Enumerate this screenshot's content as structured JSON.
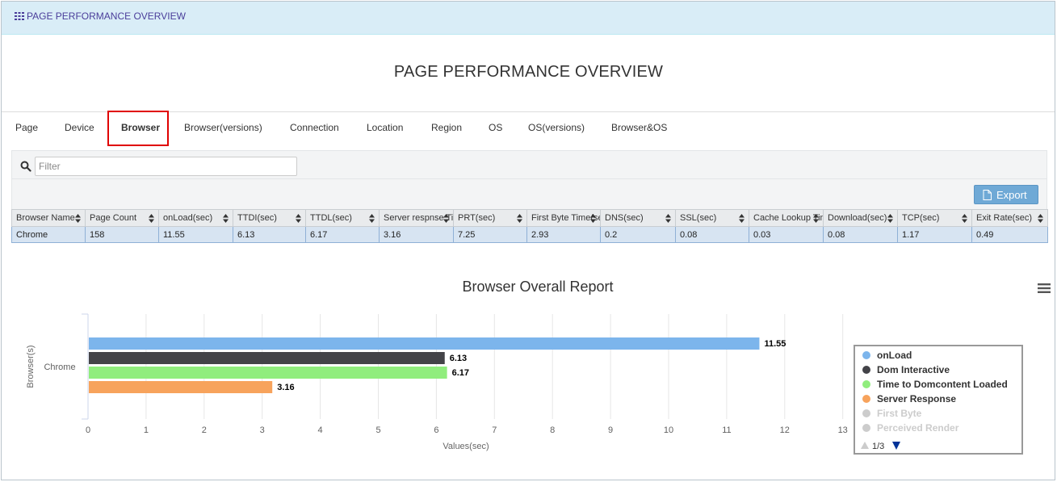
{
  "header": {
    "title": "PAGE PERFORMANCE OVERVIEW",
    "icon": "grid-icon"
  },
  "page_title": "PAGE PERFORMANCE OVERVIEW",
  "tabs": [
    {
      "label": "Page"
    },
    {
      "label": "Device"
    },
    {
      "label": "Browser",
      "active": true
    },
    {
      "label": "Browser(versions)"
    },
    {
      "label": "Connection"
    },
    {
      "label": "Location"
    },
    {
      "label": "Region"
    },
    {
      "label": "OS"
    },
    {
      "label": "OS(versions)"
    },
    {
      "label": "Browser&OS"
    }
  ],
  "filter": {
    "placeholder": "Filter",
    "value": ""
  },
  "toolbar": {
    "export_label": "Export"
  },
  "table": {
    "columns": [
      "Browser Name",
      "Page Count",
      "onLoad(sec)",
      "TTDI(sec)",
      "TTDL(sec)",
      "Server respnse Time",
      "PRT(sec)",
      "First Byte Time(sec)",
      "DNS(sec)",
      "SSL(sec)",
      "Cache Lookup Time",
      "Download(sec)",
      "TCP(sec)",
      "Exit Rate(sec)"
    ],
    "rows": [
      [
        "Chrome",
        "158",
        "11.55",
        "6.13",
        "6.17",
        "3.16",
        "7.25",
        "2.93",
        "0.2",
        "0.08",
        "0.03",
        "0.08",
        "1.17",
        "0.49"
      ]
    ]
  },
  "chart_data": {
    "type": "bar",
    "orientation": "horizontal",
    "title": "Browser Overall Report",
    "xlabel": "Values(sec)",
    "ylabel": "Browser(s)",
    "categories": [
      "Chrome"
    ],
    "xlim": [
      0,
      13
    ],
    "x_ticks": [
      "0",
      "1",
      "2",
      "3",
      "4",
      "5",
      "6",
      "7",
      "8",
      "9",
      "10",
      "11",
      "12",
      "13"
    ],
    "series": [
      {
        "name": "onLoad",
        "values": [
          11.55
        ],
        "color": "#7cb5ec",
        "label": "11.55"
      },
      {
        "name": "Dom Interactive",
        "values": [
          6.13
        ],
        "color": "#434348",
        "label": "6.13"
      },
      {
        "name": "Time to Domcontent Loaded",
        "values": [
          6.17
        ],
        "color": "#90ed7d",
        "label": "6.17"
      },
      {
        "name": "Server Response",
        "values": [
          3.16
        ],
        "color": "#f7a35c",
        "label": "3.16"
      }
    ],
    "legend": {
      "placement": "right",
      "items": [
        {
          "name": "onLoad",
          "color": "#7cb5ec",
          "visible": true
        },
        {
          "name": "Dom Interactive",
          "color": "#434348",
          "visible": true
        },
        {
          "name": "Time to Domcontent Loaded",
          "color": "#90ed7d",
          "visible": true
        },
        {
          "name": "Server Response",
          "color": "#f7a35c",
          "visible": true
        },
        {
          "name": "First Byte",
          "color": "#cccccc",
          "visible": false
        },
        {
          "name": "Perceived Render",
          "color": "#cccccc",
          "visible": false
        }
      ],
      "page": "1/3"
    },
    "grid": true
  }
}
